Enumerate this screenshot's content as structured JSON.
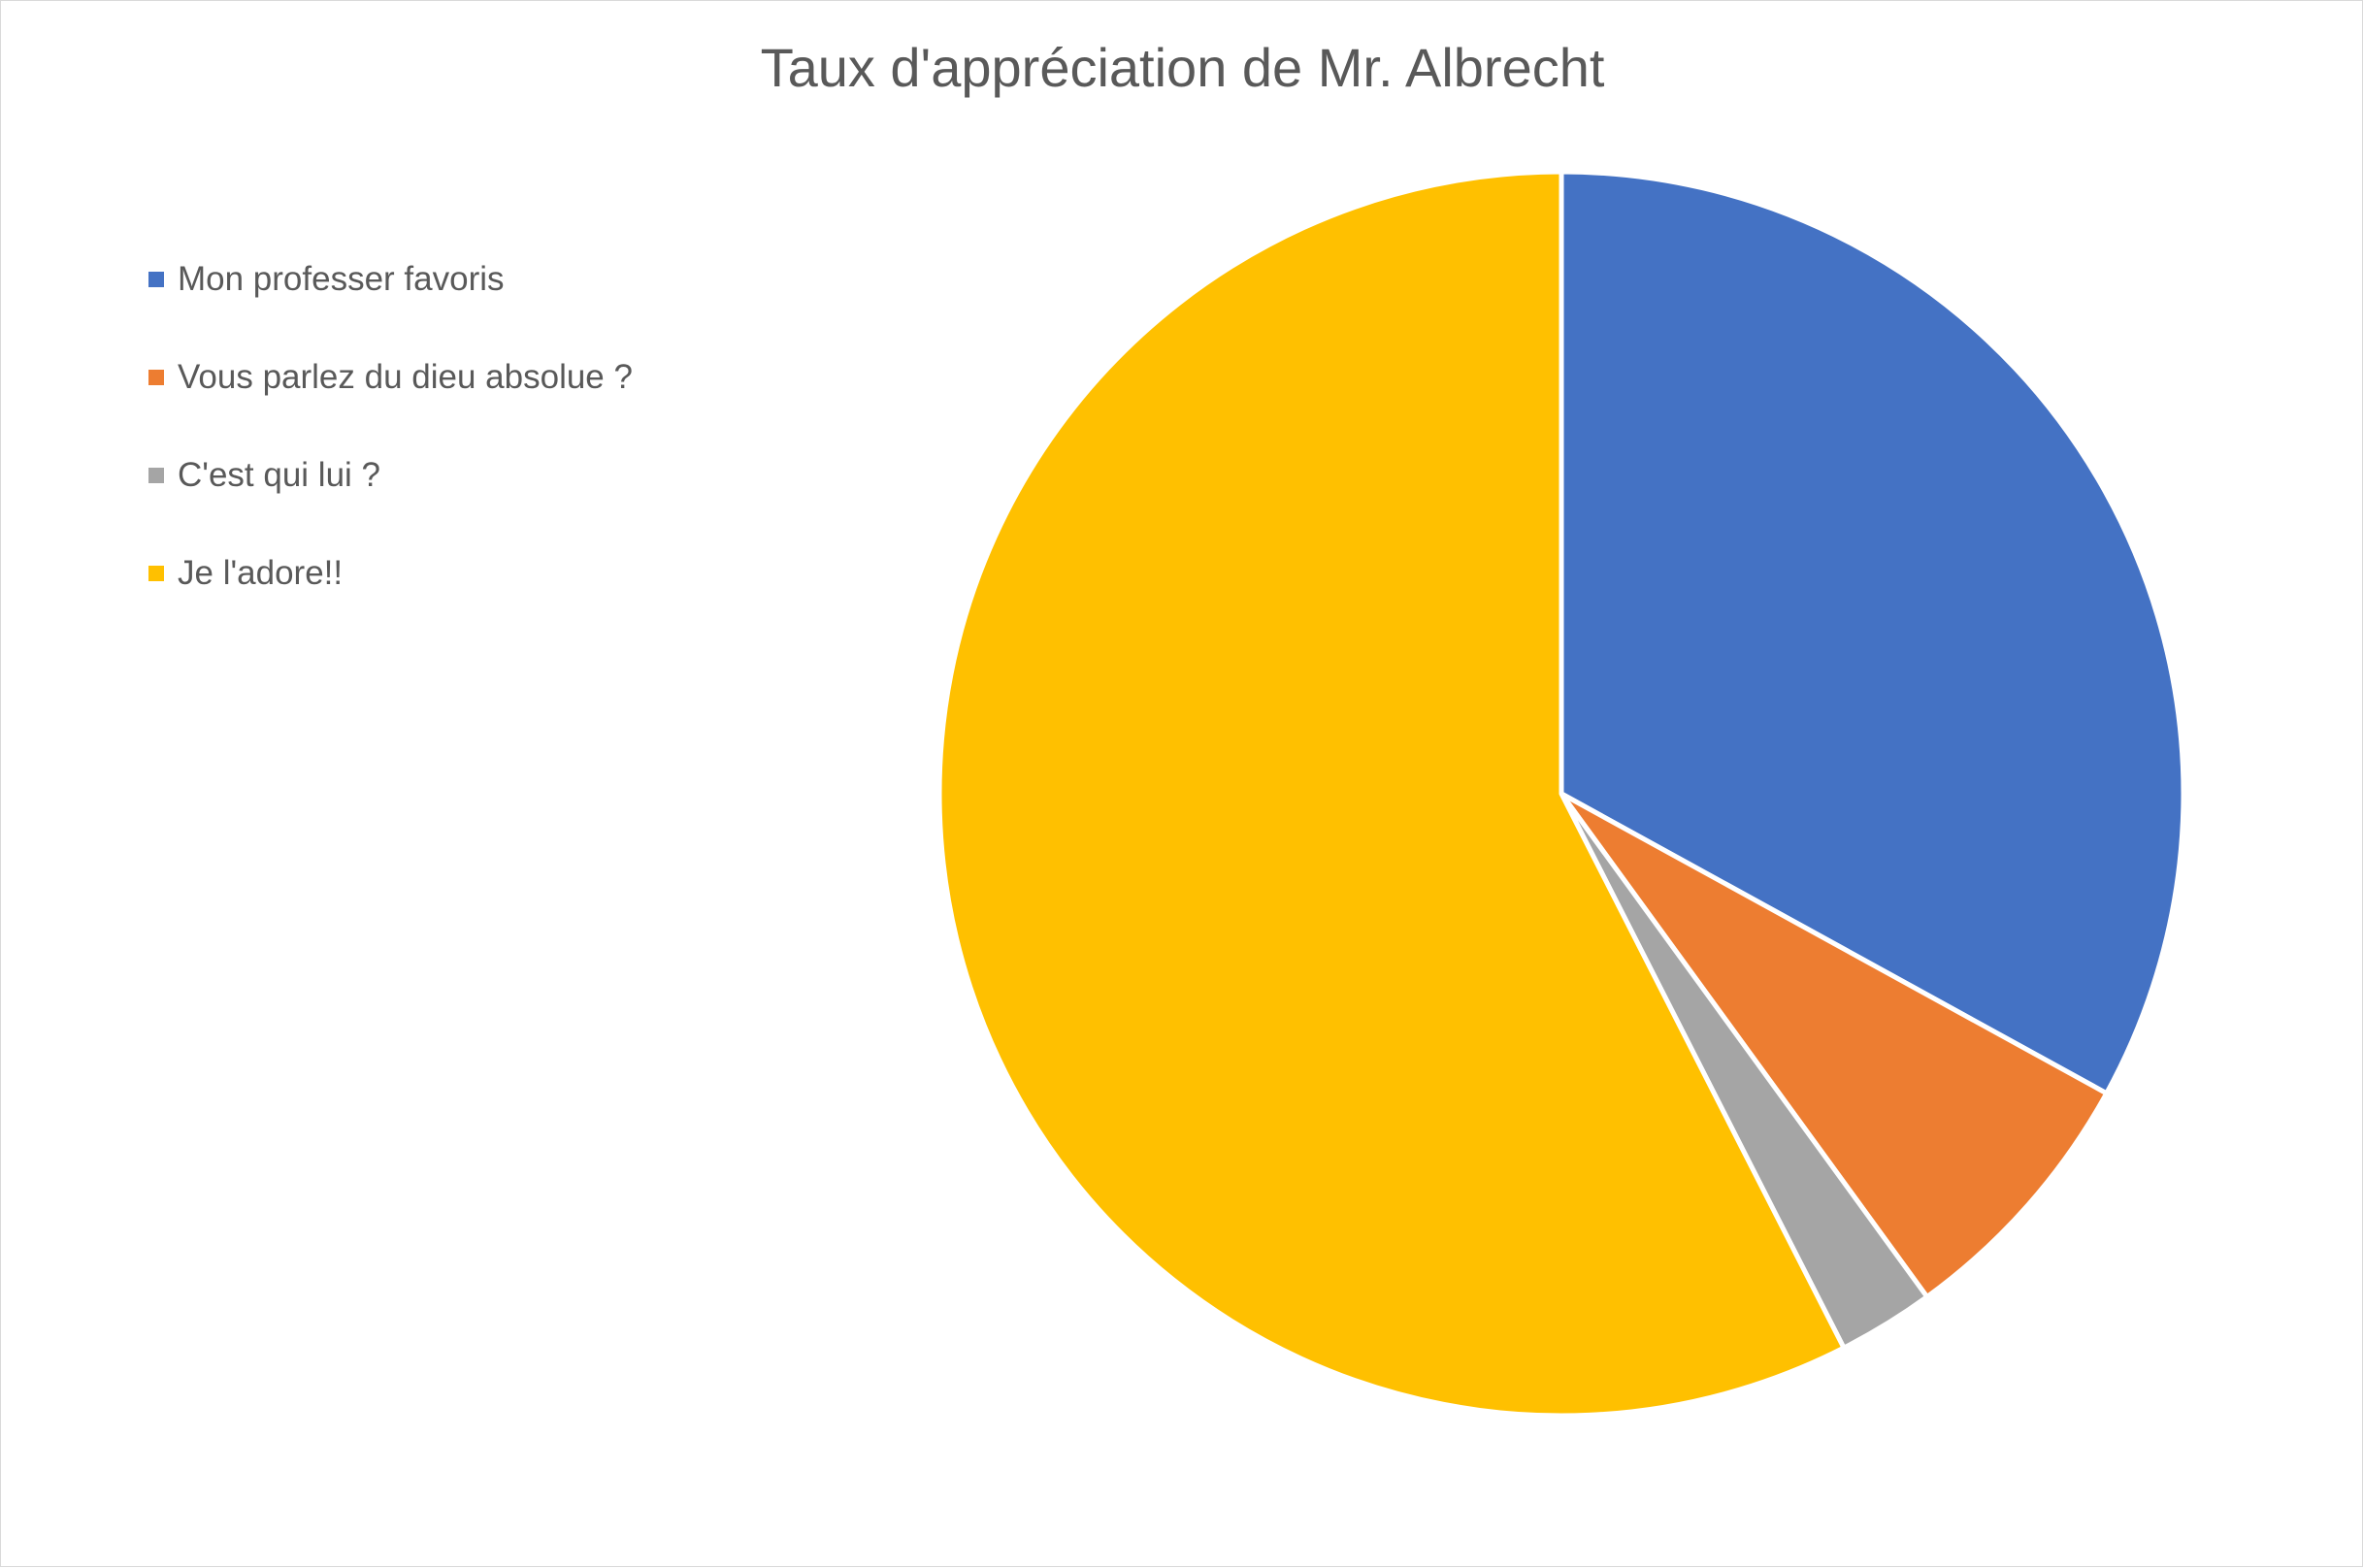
{
  "chart_data": {
    "type": "pie",
    "title": "Taux d'appréciation de Mr. Albrecht",
    "legend_position": "left",
    "start_angle_deg": 0,
    "direction": "clockwise",
    "slices": [
      {
        "label": "Mon professer favoris",
        "value": 33,
        "color": "#4472C4"
      },
      {
        "label": "Vous parlez du dieu absolue ?",
        "value": 7,
        "color": "#ED7D31"
      },
      {
        "label": "C'est qui lui ?",
        "value": 2.5,
        "color": "#A5A5A5"
      },
      {
        "label": "Je l'adore!!",
        "value": 57.5,
        "color": "#FFC000"
      }
    ]
  }
}
